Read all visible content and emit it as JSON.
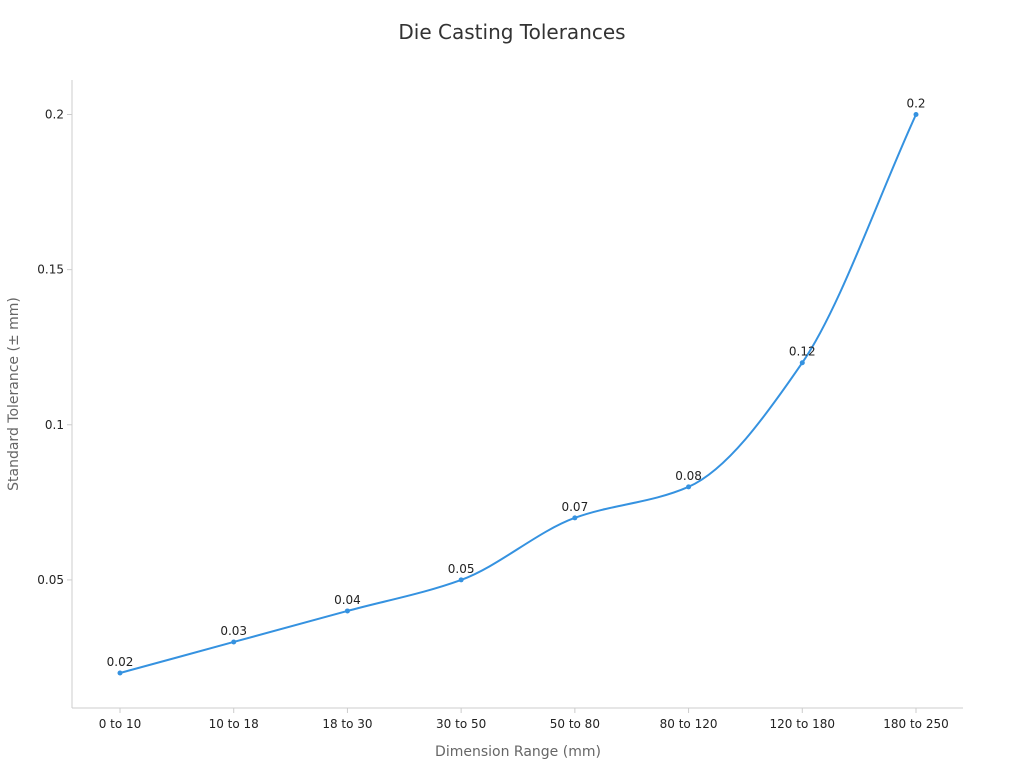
{
  "chart_data": {
    "type": "line",
    "title": "Die Casting Tolerances",
    "xlabel": "Dimension Range (mm)",
    "ylabel": "Standard Tolerance (± mm)",
    "categories": [
      "0 to 10",
      "10 to 18",
      "18 to 30",
      "30 to 50",
      "50 to 80",
      "80 to 120",
      "120 to 180",
      "180 to 250"
    ],
    "values": [
      0.02,
      0.03,
      0.04,
      0.05,
      0.07,
      0.08,
      0.12,
      0.2
    ],
    "data_labels": [
      "0.02",
      "0.03",
      "0.04",
      "0.05",
      "0.07",
      "0.08",
      "0.12",
      "0.2"
    ],
    "yticks": [
      0.05,
      0.1,
      0.15,
      0.2
    ],
    "ytick_labels": [
      "0.05",
      "0.1",
      "0.15",
      "0.2"
    ],
    "ylim": [
      0.009,
      0.211
    ],
    "line_color": "#3592e0",
    "smooth": true,
    "grid": false,
    "legend": "none"
  }
}
